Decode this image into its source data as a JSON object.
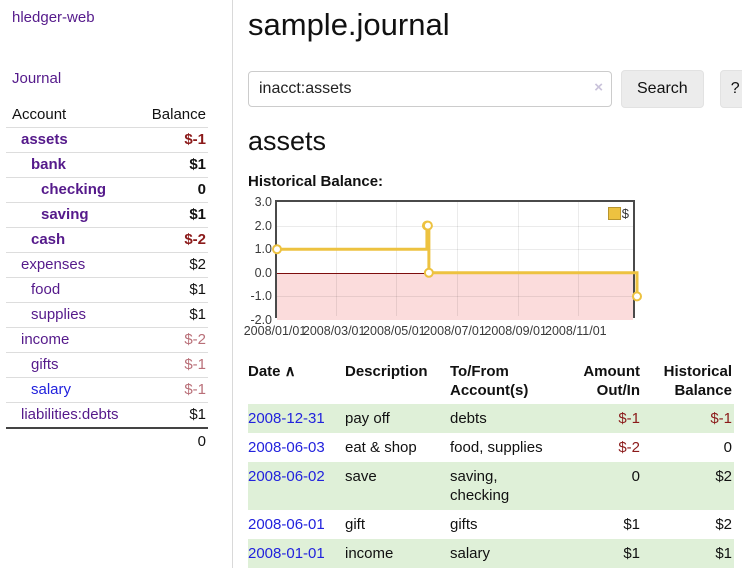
{
  "app": {
    "brand": "hledger-web",
    "nav": {
      "journal": "Journal"
    }
  },
  "sidebar": {
    "headers": {
      "account": "Account",
      "balance": "Balance"
    },
    "accounts": [
      {
        "label": "assets",
        "balance": "$-1",
        "depth": 0,
        "bold": true,
        "negative": true
      },
      {
        "label": "bank",
        "balance": "$1",
        "depth": 1,
        "bold": true,
        "negative": false
      },
      {
        "label": "checking",
        "balance": "0",
        "depth": 2,
        "bold": true,
        "negative": false
      },
      {
        "label": "saving",
        "balance": "$1",
        "depth": 2,
        "bold": true,
        "negative": false
      },
      {
        "label": "cash",
        "balance": "$-2",
        "depth": 1,
        "bold": true,
        "negative": true
      },
      {
        "label": "expenses",
        "balance": "$2",
        "depth": 0,
        "bold": false,
        "negative": false
      },
      {
        "label": "food",
        "balance": "$1",
        "depth": 1,
        "bold": false,
        "negative": false
      },
      {
        "label": "supplies",
        "balance": "$1",
        "depth": 1,
        "bold": false,
        "negative": false
      },
      {
        "label": "income",
        "balance": "$-2",
        "depth": 0,
        "bold": false,
        "negative": true
      },
      {
        "label": "gifts",
        "balance": "$-1",
        "depth": 1,
        "bold": false,
        "negative": true
      },
      {
        "label": "salary",
        "balance": "$-1",
        "depth": 1,
        "bold": false,
        "negative": true,
        "link_color": "blue"
      },
      {
        "label": "liabilities:debts",
        "balance": "$1",
        "depth": 0,
        "bold": false,
        "negative": false
      }
    ],
    "total": "0"
  },
  "main": {
    "title": "sample.journal",
    "search": {
      "value": "inacct:assets",
      "clear_icon": "×",
      "search_button": "Search",
      "help_button": "?"
    },
    "account_heading": "assets",
    "section_label": "Historical Balance:"
  },
  "chart_data": {
    "type": "line",
    "step": true,
    "title": "Historical Balance",
    "series": [
      {
        "name": "$",
        "color": "#edc240",
        "points": [
          [
            "2008-01-01",
            1
          ],
          [
            "2008-06-01",
            2
          ],
          [
            "2008-06-02",
            2
          ],
          [
            "2008-06-03",
            0
          ],
          [
            "2008-12-31",
            -1
          ]
        ]
      }
    ],
    "x_range": [
      "2008-01-01",
      "2008-12-31"
    ],
    "ylim": [
      -2,
      3
    ],
    "yticks": [
      3,
      2,
      1,
      0,
      -1,
      -2
    ],
    "ytick_labels": [
      "3.0",
      "2.0",
      "1.0",
      "0.0",
      "-1.0",
      "-2.0"
    ],
    "xticks": [
      "2008/01/01",
      "2008/03/01",
      "2008/05/01",
      "2008/07/01",
      "2008/09/01",
      "2008/11/01"
    ],
    "grid": true,
    "legend_position": "top-right",
    "negative_region_color": "#fbdcdc",
    "zero_line_color": "#7d0d0d"
  },
  "register": {
    "sort_icon": "∧",
    "headers": [
      "Date",
      "Description",
      "To/From Account(s)",
      "Amount Out/In",
      "Historical Balance"
    ],
    "rows": [
      {
        "date": "2008-12-31",
        "description": "pay off",
        "accounts": "debts",
        "amount": "$-1",
        "amount_negative": true,
        "balance": "$-1",
        "balance_negative": true
      },
      {
        "date": "2008-06-03",
        "description": "eat & shop",
        "accounts": "food, supplies",
        "amount": "$-2",
        "amount_negative": true,
        "balance": "0",
        "balance_negative": false
      },
      {
        "date": "2008-06-02",
        "description": "save",
        "accounts": "saving, checking",
        "amount": "0",
        "amount_negative": false,
        "balance": "$2",
        "balance_negative": false
      },
      {
        "date": "2008-06-01",
        "description": "gift",
        "accounts": "gifts",
        "amount": "$1",
        "amount_negative": false,
        "balance": "$2",
        "balance_negative": false
      },
      {
        "date": "2008-01-01",
        "description": "income",
        "accounts": "salary",
        "amount": "$1",
        "amount_negative": false,
        "balance": "$1",
        "balance_negative": false
      }
    ]
  },
  "colors": {
    "accent_purple": "#551a8b",
    "link_blue": "#2222dd",
    "negative_dark": "#8b1a1a",
    "negative_soft": "#b96f78",
    "row_green": "#dff0d8",
    "series_gold": "#edc240"
  }
}
